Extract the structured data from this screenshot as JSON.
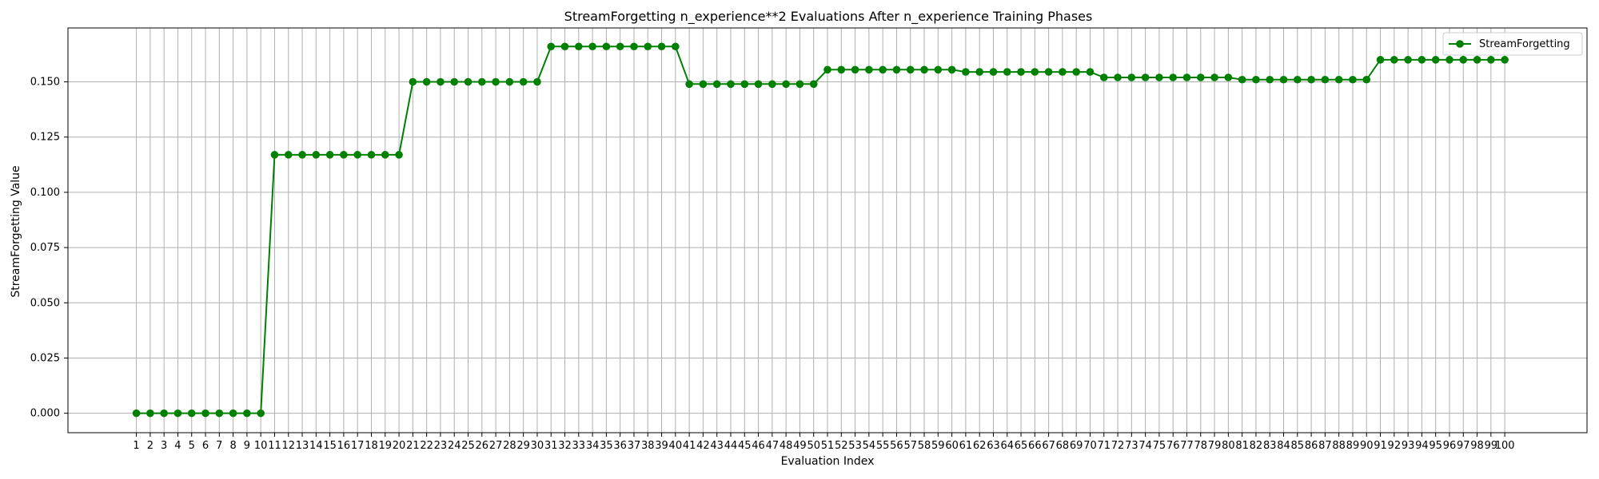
{
  "chart_data": {
    "type": "line",
    "title": "StreamForgetting n_experience**2 Evaluations After n_experience Training Phases",
    "xlabel": "Evaluation Index",
    "ylabel": "StreamForgetting Value",
    "x": [
      1,
      2,
      3,
      4,
      5,
      6,
      7,
      8,
      9,
      10,
      11,
      12,
      13,
      14,
      15,
      16,
      17,
      18,
      19,
      20,
      21,
      22,
      23,
      24,
      25,
      26,
      27,
      28,
      29,
      30,
      31,
      32,
      33,
      34,
      35,
      36,
      37,
      38,
      39,
      40,
      41,
      42,
      43,
      44,
      45,
      46,
      47,
      48,
      49,
      50,
      51,
      52,
      53,
      54,
      55,
      56,
      57,
      58,
      59,
      60,
      61,
      62,
      63,
      64,
      65,
      66,
      67,
      68,
      69,
      70,
      71,
      72,
      73,
      74,
      75,
      76,
      77,
      78,
      79,
      80,
      81,
      82,
      83,
      84,
      85,
      86,
      87,
      88,
      89,
      90,
      91,
      92,
      93,
      94,
      95,
      96,
      97,
      98,
      99,
      100
    ],
    "y_ticks": [
      "0.000",
      "0.025",
      "0.050",
      "0.075",
      "0.100",
      "0.125",
      "0.150"
    ],
    "ylim": [
      -0.0088,
      0.1744
    ],
    "xlim": [
      -3.95,
      105.95
    ],
    "grid": true,
    "legend_position": "top-right",
    "series": [
      {
        "name": "StreamForgetting",
        "color": "#008000",
        "marker": "circle",
        "values": [
          0.0,
          0.0,
          0.0,
          0.0,
          0.0,
          0.0,
          0.0,
          0.0,
          0.0,
          0.0,
          0.117,
          0.117,
          0.117,
          0.117,
          0.117,
          0.117,
          0.117,
          0.117,
          0.117,
          0.117,
          0.15,
          0.15,
          0.15,
          0.15,
          0.15,
          0.15,
          0.15,
          0.15,
          0.15,
          0.15,
          0.166,
          0.166,
          0.166,
          0.166,
          0.166,
          0.166,
          0.166,
          0.166,
          0.166,
          0.166,
          0.149,
          0.149,
          0.149,
          0.149,
          0.149,
          0.149,
          0.149,
          0.149,
          0.149,
          0.149,
          0.1555,
          0.1555,
          0.1555,
          0.1555,
          0.1555,
          0.1555,
          0.1555,
          0.1555,
          0.1555,
          0.1555,
          0.1545,
          0.1545,
          0.1545,
          0.1545,
          0.1545,
          0.1545,
          0.1545,
          0.1545,
          0.1545,
          0.1545,
          0.152,
          0.152,
          0.152,
          0.152,
          0.152,
          0.152,
          0.152,
          0.152,
          0.152,
          0.152,
          0.151,
          0.151,
          0.151,
          0.151,
          0.151,
          0.151,
          0.151,
          0.151,
          0.151,
          0.151,
          0.16,
          0.16,
          0.16,
          0.16,
          0.16,
          0.16,
          0.16,
          0.16,
          0.16,
          0.16
        ]
      }
    ]
  }
}
